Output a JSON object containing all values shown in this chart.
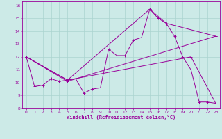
{
  "xlabel": "Windchill (Refroidissement éolien,°C)",
  "bg_color": "#cceae7",
  "line_color": "#990099",
  "grid_color": "#aad4d0",
  "xlim": [
    -0.5,
    23.5
  ],
  "ylim": [
    8,
    16.3
  ],
  "xticks": [
    0,
    1,
    2,
    3,
    4,
    5,
    6,
    7,
    8,
    9,
    10,
    11,
    12,
    13,
    14,
    15,
    16,
    17,
    18,
    19,
    20,
    21,
    22,
    23
  ],
  "yticks": [
    8,
    9,
    10,
    11,
    12,
    13,
    14,
    15,
    16
  ],
  "series1": [
    [
      0,
      12.0
    ],
    [
      1,
      9.7
    ],
    [
      2,
      9.8
    ],
    [
      3,
      10.3
    ],
    [
      4,
      10.1
    ],
    [
      5,
      10.2
    ],
    [
      6,
      10.3
    ],
    [
      7,
      9.2
    ],
    [
      8,
      9.5
    ],
    [
      9,
      9.6
    ],
    [
      10,
      12.6
    ],
    [
      11,
      12.1
    ],
    [
      12,
      12.1
    ],
    [
      13,
      13.3
    ],
    [
      14,
      13.5
    ],
    [
      15,
      15.7
    ],
    [
      16,
      15.0
    ],
    [
      17,
      14.6
    ],
    [
      18,
      13.6
    ],
    [
      19,
      12.0
    ],
    [
      20,
      11.0
    ],
    [
      21,
      8.5
    ],
    [
      22,
      8.5
    ],
    [
      23,
      8.4
    ]
  ],
  "series2": [
    [
      0,
      12.0
    ],
    [
      5,
      10.1
    ],
    [
      23,
      13.6
    ]
  ],
  "series3": [
    [
      0,
      12.0
    ],
    [
      5,
      10.2
    ],
    [
      15,
      15.7
    ],
    [
      17,
      14.6
    ],
    [
      23,
      13.6
    ]
  ],
  "series4": [
    [
      0,
      12.0
    ],
    [
      5,
      10.2
    ],
    [
      20,
      12.0
    ],
    [
      23,
      8.4
    ]
  ]
}
